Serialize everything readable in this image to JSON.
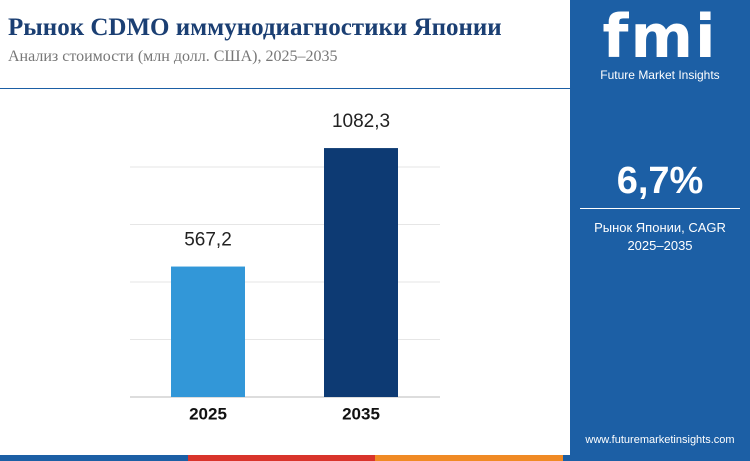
{
  "chart_data": {
    "type": "bar",
    "title": "Рынок CDMO иммунодиагностики Японии",
    "subtitle": "Анализ стоимости (млн долл. США), 2025–2035",
    "categories": [
      "2025",
      "2035"
    ],
    "values": [
      567.2,
      1082.3
    ],
    "value_labels": [
      "567,2",
      "1082,3"
    ],
    "colors": [
      "#3297d8",
      "#0d3a73"
    ],
    "ylim": [
      0,
      1200
    ],
    "yticks": [
      0,
      250,
      500,
      750,
      1000
    ],
    "grid": true
  },
  "panel": {
    "logo": "fmi",
    "logo_text": "Future Market Insights",
    "cagr": "6,7%",
    "cagr_label": "Рынок Японии, CAGR",
    "cagr_period": "2025–2035",
    "website": "www.futuremarketinsights.com"
  }
}
